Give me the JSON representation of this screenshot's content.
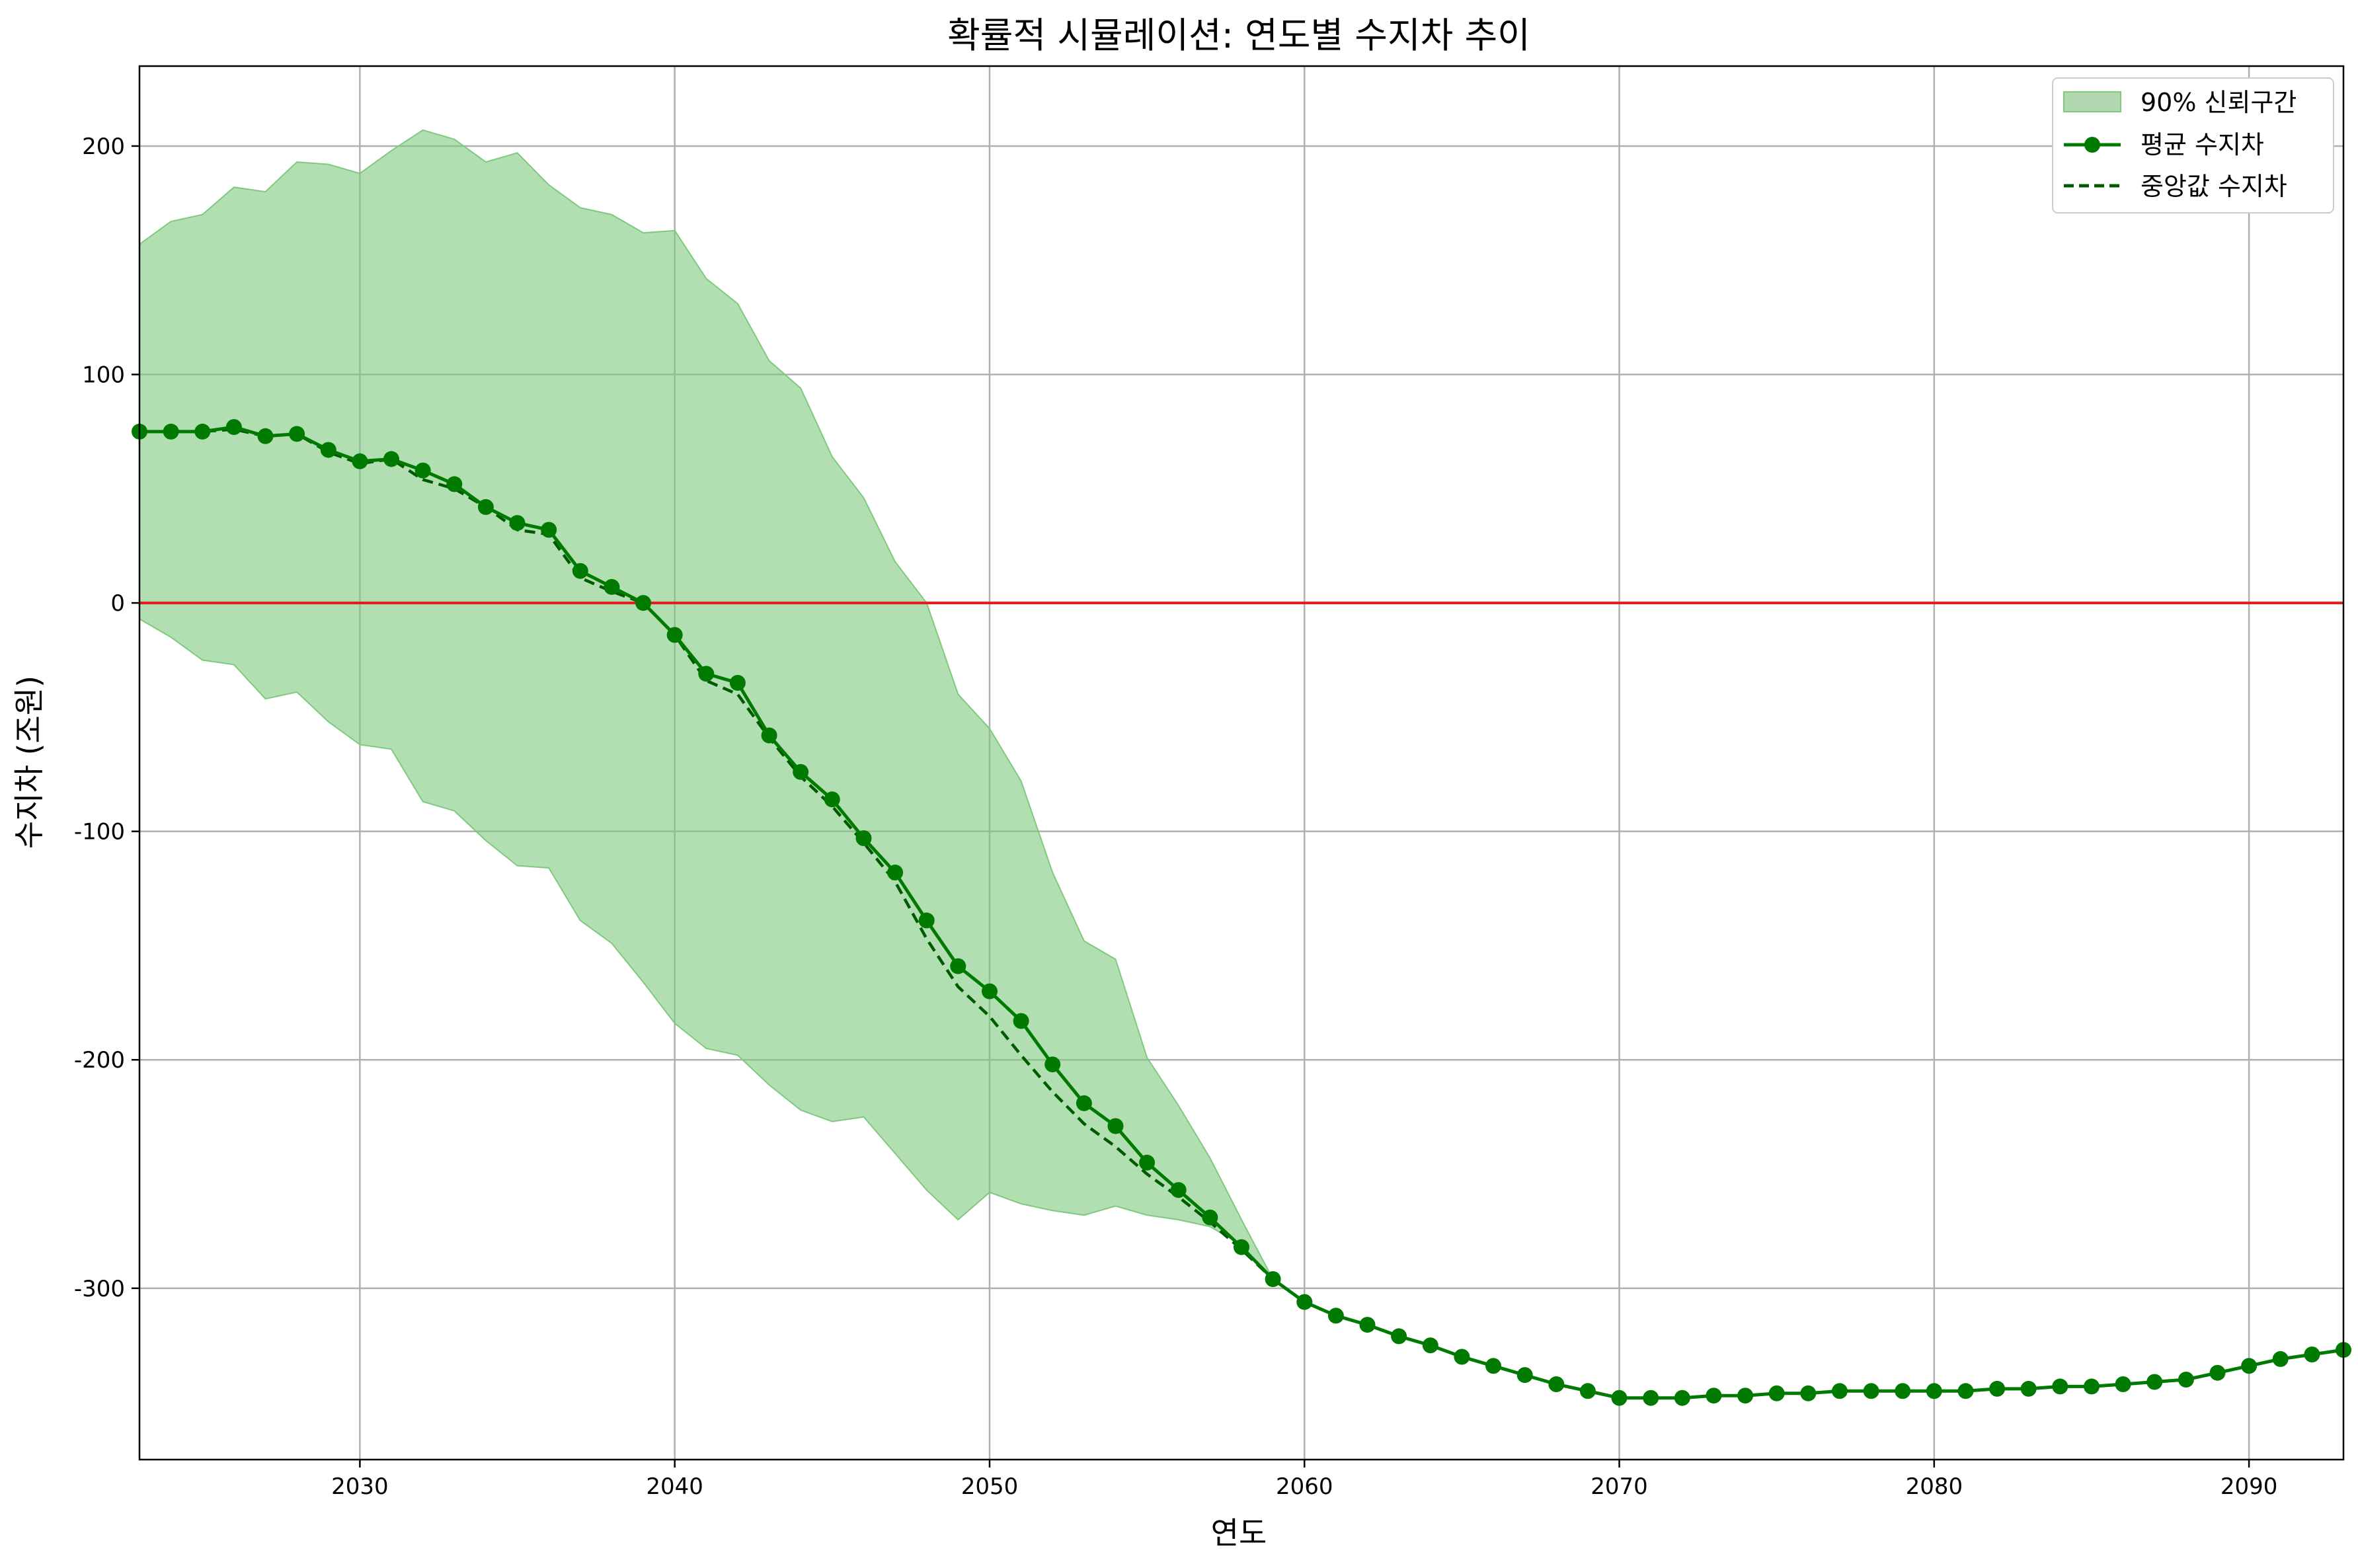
{
  "chart_data": {
    "type": "line",
    "title": "확률적 시뮬레이션: 연도별 수지차 추이",
    "xlabel": "연도",
    "ylabel": "수지차 (조원)",
    "xlim": [
      2023,
      2093
    ],
    "ylim": [
      -375,
      235
    ],
    "xticks": [
      2030,
      2040,
      2050,
      2060,
      2070,
      2080,
      2090
    ],
    "yticks": [
      -300,
      -200,
      -100,
      0,
      100,
      200
    ],
    "grid": true,
    "legend_position": "top-right",
    "reference_line": {
      "y": 0,
      "color": "#e41a1c"
    },
    "colors": {
      "band": "#7fc97f",
      "mean": "#007a00",
      "median": "#005a00"
    },
    "x": [
      2023,
      2024,
      2025,
      2026,
      2027,
      2028,
      2029,
      2030,
      2031,
      2032,
      2033,
      2034,
      2035,
      2036,
      2037,
      2038,
      2039,
      2040,
      2041,
      2042,
      2043,
      2044,
      2045,
      2046,
      2047,
      2048,
      2049,
      2050,
      2051,
      2052,
      2053,
      2054,
      2055,
      2056,
      2057,
      2058,
      2059,
      2060,
      2061,
      2062,
      2063,
      2064,
      2065,
      2066,
      2067,
      2068,
      2069,
      2070,
      2071,
      2072,
      2073,
      2074,
      2075,
      2076,
      2077,
      2078,
      2079,
      2080,
      2081,
      2082,
      2083,
      2084,
      2085,
      2086,
      2087,
      2088,
      2089,
      2090,
      2091,
      2092,
      2093
    ],
    "series": [
      {
        "name": "90% 신뢰구간",
        "kind": "band",
        "upper": [
          157,
          167,
          170,
          182,
          180,
          193,
          192,
          188,
          198,
          207,
          203,
          193,
          197,
          183,
          173,
          170,
          162,
          163,
          142,
          131,
          106,
          94,
          64,
          46,
          18,
          0,
          -40,
          -55,
          -78,
          -118,
          -148,
          -156,
          -199,
          -220,
          -243,
          -270,
          -296,
          -306,
          -312,
          -316,
          -321,
          -325,
          -330,
          -334,
          -338,
          -342,
          -345,
          -348,
          -348,
          -348,
          -347,
          -347,
          -346,
          -346,
          -345,
          -345,
          -345,
          -345,
          -345,
          -344,
          -344,
          -343,
          -343,
          -342,
          -341,
          -340,
          -337,
          -334,
          -331,
          -329,
          -327
        ],
        "lower": [
          -7,
          -15,
          -25,
          -27,
          -42,
          -39,
          -52,
          -62,
          -64,
          -87,
          -91,
          -104,
          -115,
          -116,
          -139,
          -149,
          -166,
          -184,
          -195,
          -198,
          -211,
          -222,
          -227,
          -225,
          -241,
          -257,
          -270,
          -258,
          -263,
          -266,
          -268,
          -264,
          -268,
          -270,
          -273,
          -281,
          -296,
          -306,
          -312,
          -316,
          -321,
          -325,
          -330,
          -334,
          -338,
          -342,
          -345,
          -348,
          -348,
          -348,
          -347,
          -347,
          -346,
          -346,
          -345,
          -345,
          -345,
          -345,
          -345,
          -344,
          -344,
          -343,
          -343,
          -342,
          -341,
          -340,
          -337,
          -334,
          -331,
          -329,
          -327
        ]
      },
      {
        "name": "평균 수지차",
        "kind": "line-markers",
        "values": [
          75,
          75,
          75,
          77,
          73,
          74,
          67,
          62,
          63,
          58,
          52,
          42,
          35,
          32,
          14,
          7,
          0,
          -14,
          -31,
          -35,
          -58,
          -74,
          -86,
          -103,
          -118,
          -139,
          -159,
          -170,
          -183,
          -202,
          -219,
          -229,
          -245,
          -257,
          -269,
          -282,
          -296,
          -306,
          -312,
          -316,
          -321,
          -325,
          -330,
          -334,
          -338,
          -342,
          -345,
          -348,
          -348,
          -348,
          -347,
          -347,
          -346,
          -346,
          -345,
          -345,
          -345,
          -345,
          -345,
          -344,
          -344,
          -343,
          -343,
          -342,
          -341,
          -340,
          -337,
          -334,
          -331,
          -329,
          -327
        ]
      },
      {
        "name": "중앙값 수지차",
        "kind": "dashed-line",
        "values": [
          75,
          75,
          75,
          76,
          73,
          74,
          66,
          61,
          63,
          54,
          50,
          42,
          32,
          30,
          11,
          5,
          0,
          -14,
          -34,
          -40,
          -59,
          -76,
          -89,
          -105,
          -122,
          -147,
          -168,
          -181,
          -198,
          -214,
          -228,
          -238,
          -250,
          -260,
          -271,
          -283,
          -296,
          -306,
          -312,
          -316,
          -321,
          -325,
          -330,
          -334,
          -338,
          -342,
          -345,
          -348,
          -348,
          -348,
          -347,
          -347,
          -346,
          -346,
          -345,
          -345,
          -345,
          -345,
          -345,
          -344,
          -344,
          -343,
          -343,
          -342,
          -341,
          -340,
          -337,
          -334,
          -331,
          -329,
          -327
        ]
      }
    ]
  }
}
